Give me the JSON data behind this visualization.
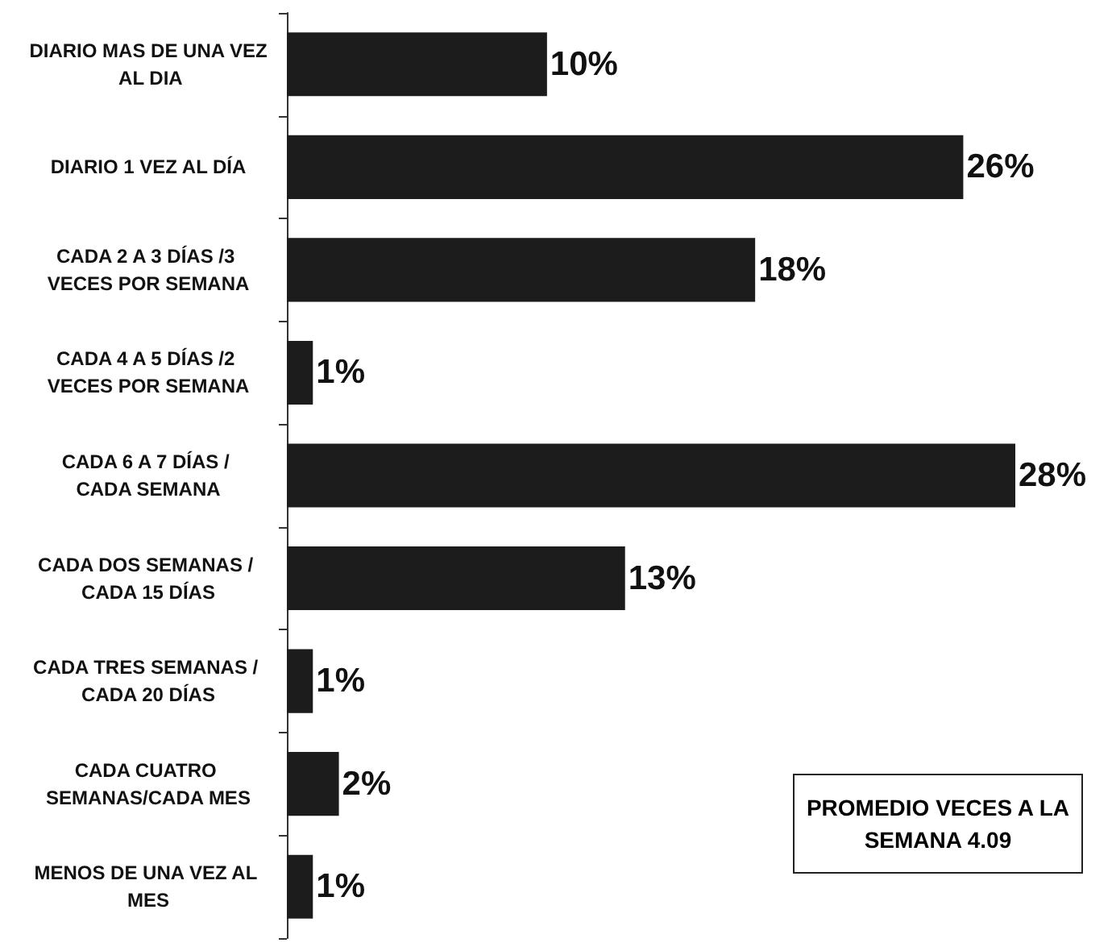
{
  "chart_data": {
    "type": "bar",
    "orientation": "horizontal",
    "categories": [
      "DIARIO MAS DE UNA VEZ AL DIA",
      "DIARIO 1 VEZ AL DÍA",
      "CADA 2 A 3 DÍAS /3 VECES POR SEMANA",
      "CADA 4 A 5 DÍAS /2 VECES POR SEMANA",
      "CADA 6 A 7 DÍAS / CADA SEMANA",
      "CADA DOS SEMANAS / CADA 15 DÍAS",
      "CADA TRES SEMANAS / CADA 20 DÍAS",
      "CADA CUATRO SEMANAS/CADA MES",
      "MENOS DE UNA VEZ AL MES"
    ],
    "values": [
      10,
      26,
      18,
      1,
      28,
      13,
      1,
      2,
      1
    ],
    "value_labels": [
      "10%",
      "26%",
      "18%",
      "1%",
      "28%",
      "13%",
      "1%",
      "2%",
      "1%"
    ],
    "color": "#1c1c1c",
    "annotations": [
      "PROMEDIO VECES A LA SEMANA 4.09"
    ]
  }
}
